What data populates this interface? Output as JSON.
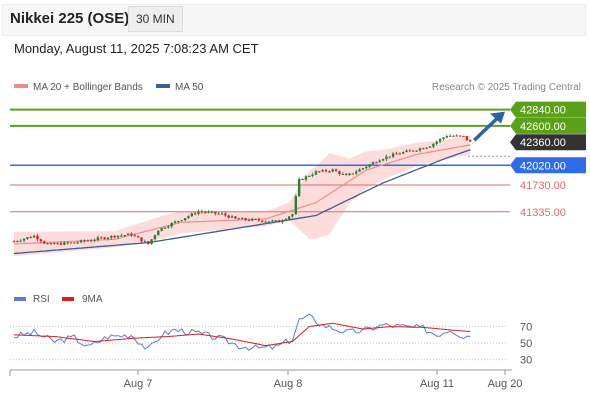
{
  "header": {
    "title": "Nikkei 225 (OSE)",
    "timeframe": "30 MIN",
    "datetime": "Monday, August 11, 2025 7:08:23 AM CET"
  },
  "colors": {
    "candle_up": "#2e7d32",
    "candle_down": "#c62828",
    "ma20": "#f08c8c",
    "bollinger_fill": "#fdd6d6",
    "ma50": "#3f5d8f",
    "green_level": "#5aa019",
    "blue_level": "#2f6de8",
    "red_level": "#e06b6b",
    "arrow": "#2e62a3",
    "rsi": "#5b7bd5",
    "rsi_ma": "#d81f1f"
  },
  "chart_data": [
    {
      "type": "candlestick",
      "legend": [
        "MA 20 + Bollinger Bands",
        "MA 50"
      ],
      "copyright": "Research © 2025 Trading Central",
      "x_tick_labels": [
        "Aug 7",
        "Aug 8",
        "Aug 11",
        "Aug 20"
      ],
      "ylim": [
        40300,
        43100
      ],
      "levels": [
        {
          "value": 42840,
          "label": "42840.00",
          "kind": "resistance"
        },
        {
          "value": 42600,
          "label": "42600.00",
          "kind": "resistance"
        },
        {
          "value": 42360,
          "label": "42360.00",
          "kind": "last"
        },
        {
          "value": 42020,
          "label": "42020.00",
          "kind": "pivot"
        },
        {
          "value": 41730,
          "label": "41730.00",
          "kind": "support"
        },
        {
          "value": 41335,
          "label": "41335.00",
          "kind": "support"
        }
      ],
      "anchors": [
        [
          0,
          40900
        ],
        [
          6,
          40980
        ],
        [
          10,
          40850
        ],
        [
          18,
          40880
        ],
        [
          30,
          40980
        ],
        [
          35,
          41000
        ],
        [
          40,
          40860
        ],
        [
          43,
          41070
        ],
        [
          47,
          41160
        ],
        [
          55,
          41340
        ],
        [
          62,
          41300
        ],
        [
          66,
          41230
        ],
        [
          72,
          41210
        ],
        [
          79,
          41190
        ],
        [
          83,
          41300
        ],
        [
          85,
          41800
        ],
        [
          90,
          41920
        ],
        [
          95,
          41950
        ],
        [
          99,
          41860
        ],
        [
          104,
          41980
        ],
        [
          109,
          42110
        ],
        [
          114,
          42190
        ],
        [
          119,
          42240
        ],
        [
          124,
          42310
        ],
        [
          129,
          42460
        ],
        [
          134,
          42440
        ],
        [
          136,
          42360
        ]
      ],
      "ma20_anchors": [
        [
          0,
          40860
        ],
        [
          30,
          40930
        ],
        [
          50,
          41180
        ],
        [
          75,
          41230
        ],
        [
          90,
          41470
        ],
        [
          105,
          41950
        ],
        [
          120,
          42180
        ],
        [
          136,
          42320
        ]
      ],
      "ma50_anchors": [
        [
          0,
          40720
        ],
        [
          40,
          40880
        ],
        [
          75,
          41160
        ],
        [
          90,
          41280
        ],
        [
          110,
          41760
        ],
        [
          128,
          42110
        ],
        [
          136,
          42250
        ]
      ],
      "band_anchors": [
        [
          0,
          180
        ],
        [
          10,
          160
        ],
        [
          30,
          120
        ],
        [
          45,
          170
        ],
        [
          60,
          140
        ],
        [
          75,
          110
        ],
        [
          82,
          130
        ],
        [
          88,
          500
        ],
        [
          94,
          600
        ],
        [
          100,
          330
        ],
        [
          110,
          220
        ],
        [
          125,
          150
        ],
        [
          136,
          140
        ]
      ]
    },
    {
      "type": "line",
      "title": "RSI",
      "legend": [
        "RSI",
        "9MA"
      ],
      "y_tick_labels": [
        "70",
        "50",
        "30"
      ],
      "ylim": [
        20,
        90
      ],
      "rsi_anchors": [
        [
          0,
          58
        ],
        [
          6,
          63
        ],
        [
          12,
          52
        ],
        [
          18,
          57
        ],
        [
          22,
          45
        ],
        [
          28,
          58
        ],
        [
          35,
          60
        ],
        [
          40,
          42
        ],
        [
          44,
          60
        ],
        [
          48,
          66
        ],
        [
          55,
          62
        ],
        [
          62,
          55
        ],
        [
          67,
          47
        ],
        [
          72,
          44
        ],
        [
          78,
          45
        ],
        [
          83,
          55
        ],
        [
          85,
          78
        ],
        [
          88,
          82
        ],
        [
          92,
          72
        ],
        [
          99,
          63
        ],
        [
          104,
          65
        ],
        [
          110,
          72
        ],
        [
          116,
          70
        ],
        [
          122,
          68
        ],
        [
          126,
          60
        ],
        [
          130,
          67
        ],
        [
          134,
          58
        ],
        [
          136,
          60
        ]
      ],
      "rsi_ma_anchors": [
        [
          0,
          60
        ],
        [
          12,
          58
        ],
        [
          24,
          52
        ],
        [
          36,
          56
        ],
        [
          46,
          58
        ],
        [
          55,
          61
        ],
        [
          65,
          55
        ],
        [
          75,
          47
        ],
        [
          83,
          52
        ],
        [
          88,
          70
        ],
        [
          95,
          74
        ],
        [
          104,
          67
        ],
        [
          112,
          70
        ],
        [
          122,
          69
        ],
        [
          130,
          66
        ],
        [
          136,
          64
        ]
      ]
    }
  ]
}
